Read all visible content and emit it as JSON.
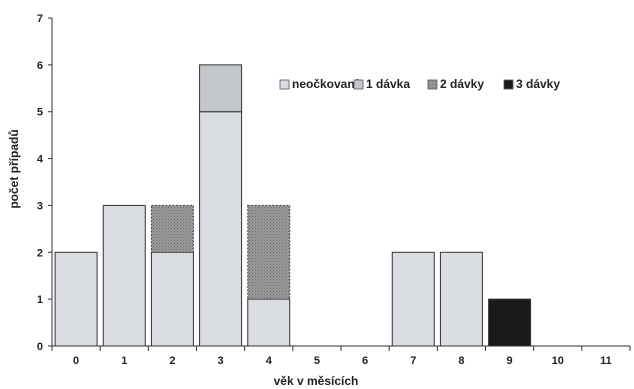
{
  "chart_data": {
    "type": "bar",
    "stacked": true,
    "title": "",
    "xlabel": "věk v měsících",
    "ylabel": "počet případů",
    "categories": [
      "0",
      "1",
      "2",
      "3",
      "4",
      "5",
      "6",
      "7",
      "8",
      "9",
      "10",
      "11"
    ],
    "ylim": [
      0,
      7
    ],
    "yticks": [
      0,
      1,
      2,
      3,
      4,
      5,
      6,
      7
    ],
    "grid": false,
    "legend_position": "top-right",
    "series": [
      {
        "name": "neočkovaní",
        "values": [
          2,
          3,
          2,
          5,
          1,
          0,
          0,
          2,
          2,
          0,
          0,
          0
        ],
        "color": "#d9dde1",
        "pattern": "solid"
      },
      {
        "name": "1 dávka",
        "values": [
          0,
          0,
          0,
          1,
          0,
          0,
          0,
          0,
          0,
          0,
          0,
          0
        ],
        "color": "#c3c7cb",
        "pattern": "solid"
      },
      {
        "name": "2 dávky",
        "values": [
          0,
          0,
          1,
          0,
          2,
          0,
          0,
          0,
          0,
          0,
          0,
          0
        ],
        "color": "#8f8f8f",
        "pattern": "dotted"
      },
      {
        "name": "3 dávky",
        "values": [
          0,
          0,
          0,
          0,
          0,
          0,
          0,
          0,
          0,
          1,
          0,
          0
        ],
        "color": "#1a1a1a",
        "pattern": "solid"
      }
    ]
  }
}
